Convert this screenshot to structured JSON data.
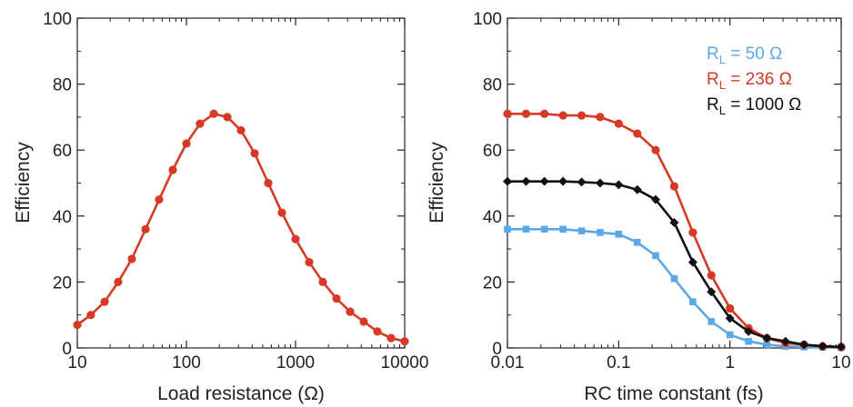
{
  "chart_data": [
    {
      "type": "line",
      "xlabel": "Load resistance (Ω)",
      "ylabel": "Efficiency",
      "xscale": "log",
      "xlim": [
        10,
        10000
      ],
      "ylim": [
        0,
        100
      ],
      "grid": false,
      "x_ticks": [
        10,
        100,
        1000,
        10000
      ],
      "x_tick_labels": [
        "10",
        "100",
        "1000",
        "10000"
      ],
      "y_ticks": [
        0,
        20,
        40,
        60,
        80,
        100
      ],
      "y_tick_labels": [
        "0",
        "20",
        "40",
        "60",
        "80",
        "100"
      ],
      "series": [
        {
          "color": "#d63a26",
          "marker": "circle",
          "x": [
            10,
            13.3,
            17.8,
            23.7,
            31.6,
            42.2,
            56.2,
            75,
            100,
            133,
            178,
            237,
            316,
            422,
            562,
            750,
            1000,
            1334,
            1778,
            2371,
            3162,
            4217,
            5623,
            7499,
            10000
          ],
          "y": [
            7,
            10,
            14,
            20,
            27,
            36,
            45,
            54,
            62,
            68,
            71,
            70,
            66,
            59,
            50,
            41,
            33,
            26,
            20,
            15,
            11,
            8,
            5,
            3,
            2
          ]
        }
      ]
    },
    {
      "type": "line",
      "xlabel": "RC time constant (fs)",
      "ylabel": "Efficiency",
      "xscale": "log",
      "xlim": [
        0.01,
        10
      ],
      "ylim": [
        0,
        100
      ],
      "grid": false,
      "legend_position": "top-right",
      "x_ticks": [
        0.01,
        0.1,
        1,
        10
      ],
      "x_tick_labels": [
        "0.01",
        "0.1",
        "1",
        "10"
      ],
      "y_ticks": [
        0,
        20,
        40,
        60,
        80,
        100
      ],
      "y_tick_labels": [
        "0",
        "20",
        "40",
        "60",
        "80",
        "100"
      ],
      "series": [
        {
          "name": "RL = 50 Ω",
          "name_parts": {
            "main": "R",
            "sub": "L",
            "rest": " = 50 Ω"
          },
          "color": "#5aa9e6",
          "marker": "square",
          "x": [
            0.01,
            0.0147,
            0.0215,
            0.0316,
            0.0464,
            0.0681,
            0.1,
            0.147,
            0.215,
            0.316,
            0.464,
            0.681,
            1,
            1.47,
            2.15,
            3.16,
            4.64,
            6.81,
            10
          ],
          "y": [
            36,
            36,
            36,
            36,
            35.5,
            35,
            34.5,
            32,
            28,
            21,
            14,
            8,
            4,
            2,
            1,
            0.5,
            0.3,
            0.2,
            0.1
          ]
        },
        {
          "name": "RL = 236 Ω",
          "name_parts": {
            "main": "R",
            "sub": "L",
            "rest": " = 236 Ω"
          },
          "color": "#d63a26",
          "marker": "circle",
          "x": [
            0.01,
            0.0147,
            0.0215,
            0.0316,
            0.0464,
            0.0681,
            0.1,
            0.147,
            0.215,
            0.316,
            0.464,
            0.681,
            1,
            1.47,
            2.15,
            3.16,
            4.64,
            6.81,
            10
          ],
          "y": [
            71,
            71,
            71,
            70.5,
            70.5,
            70,
            68,
            65,
            60,
            49,
            35,
            22,
            12,
            6,
            3,
            1.5,
            1,
            0.5,
            0.3
          ]
        },
        {
          "name": "RL = 1000 Ω",
          "name_parts": {
            "main": "R",
            "sub": "L",
            "rest": " = 1000 Ω"
          },
          "color": "#111111",
          "marker": "diamond",
          "x": [
            0.01,
            0.0147,
            0.0215,
            0.0316,
            0.0464,
            0.0681,
            0.1,
            0.147,
            0.215,
            0.316,
            0.464,
            0.681,
            1,
            1.47,
            2.15,
            3.16,
            4.64,
            6.81,
            10
          ],
          "y": [
            50.5,
            50.5,
            50.5,
            50.5,
            50.3,
            50,
            49.5,
            48,
            45,
            38,
            26,
            17,
            9,
            5,
            3,
            2,
            1,
            0.5,
            0.3
          ]
        }
      ]
    }
  ]
}
